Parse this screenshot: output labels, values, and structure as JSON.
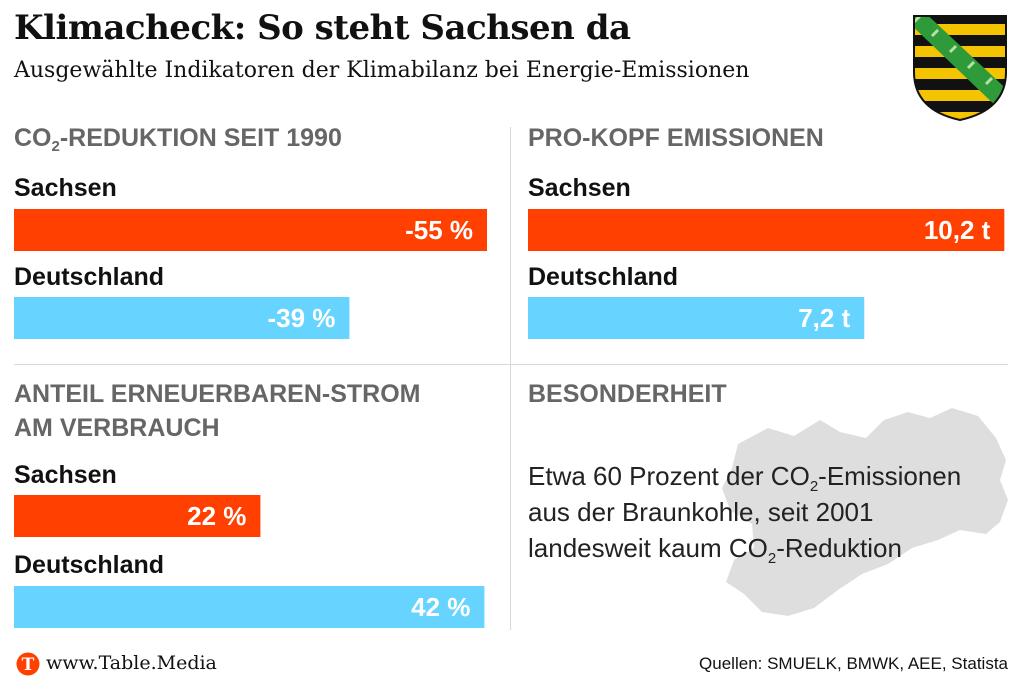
{
  "header": {
    "title": "Klimacheck: So steht Sachsen da",
    "subtitle": "Ausgewählte Indikatoren der Klimabilanz bei Energie-Emissionen"
  },
  "colors": {
    "sachsen": "#ff4000",
    "deutschland": "#66d4ff",
    "section_title": "#666666",
    "map": "#dedede"
  },
  "chart_data": [
    {
      "type": "bar",
      "title_pre": "CO",
      "title_sub": "2",
      "title_post": "-REDUKTION SEIT 1990",
      "categories": [
        "Sachsen",
        "Deutschland"
      ],
      "values": [
        -55,
        -39
      ],
      "labels": [
        "-55 %",
        "-39 %"
      ],
      "orientation": "horizontal"
    },
    {
      "type": "bar",
      "title": "PRO-KOPF EMISSIONEN",
      "categories": [
        "Sachsen",
        "Deutschland"
      ],
      "values": [
        10.2,
        7.2
      ],
      "labels": [
        "10,2 t",
        "7,2 t"
      ],
      "orientation": "horizontal"
    },
    {
      "type": "bar",
      "title_line1": "ANTEIL ERNEUERBAREN-STROM",
      "title_line2": "AM VERBRAUCH",
      "categories": [
        "Sachsen",
        "Deutschland"
      ],
      "values": [
        22,
        42
      ],
      "labels": [
        "22 %",
        "42 %"
      ],
      "orientation": "horizontal"
    }
  ],
  "besonderheit": {
    "title": "BESONDERHEIT",
    "text_1": "Etwa 60 Prozent der CO",
    "sub_1": "2",
    "text_2": "-Emissionen aus der Braunkohle, seit 2001 landesweit kaum CO",
    "sub_2": "2",
    "text_3": "-Reduktion"
  },
  "footer": {
    "logo_letter": "T",
    "url": "www.Table.Media",
    "source": "Quellen: SMUELK, BMWK, AEE, Statista"
  },
  "icons": {
    "crest": "saxony-coat-of-arms-icon",
    "map": "saxony-map-icon",
    "logo": "table-media-logo-icon"
  }
}
